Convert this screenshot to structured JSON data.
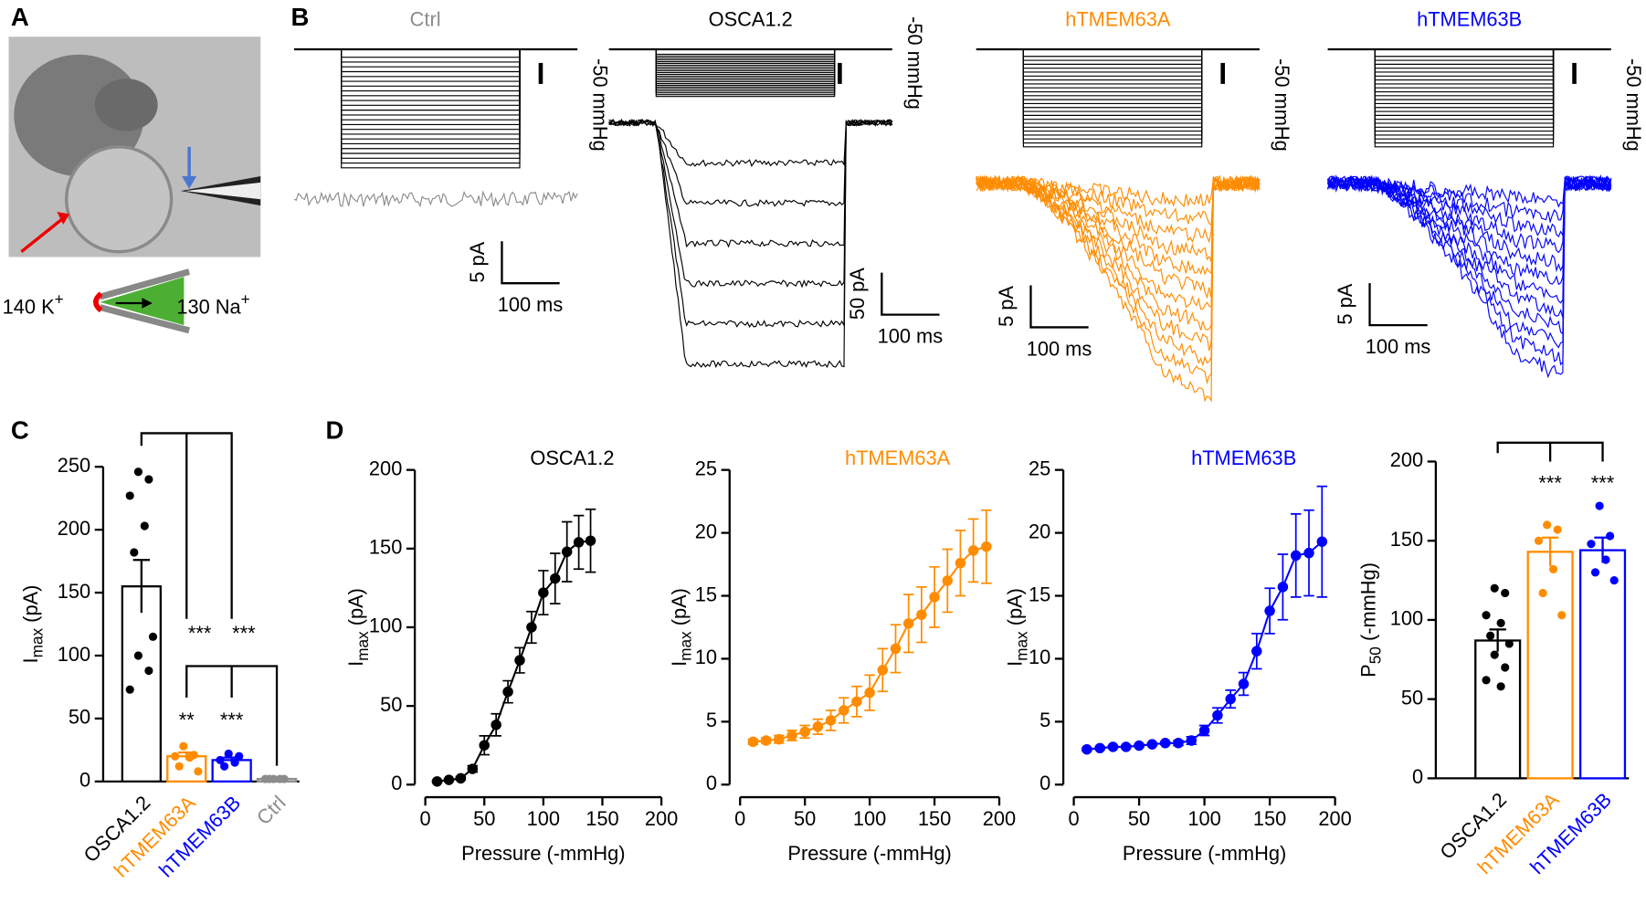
{
  "figure": {
    "panel_labels": [
      "A",
      "B",
      "C",
      "D"
    ],
    "ions": {
      "left": "140 K",
      "left_sup": "+",
      "right": "130 Na",
      "right_sup": "+"
    },
    "panel_b": [
      {
        "title": "Ctrl",
        "color": "#8c8c8c",
        "pressure_scale": "-50 mmHg",
        "current_scale": "5 pA",
        "time_scale": "100 ms"
      },
      {
        "title": "OSCA1.2",
        "color": "#000000",
        "pressure_scale": "-50 mmHg",
        "current_scale": "50 pA",
        "time_scale": "100 ms"
      },
      {
        "title": "hTMEM63A",
        "color": "#ff8c00",
        "pressure_scale": "-50 mmHg",
        "current_scale": "5 pA",
        "time_scale": "100 ms"
      },
      {
        "title": "hTMEM63B",
        "color": "#0000ff",
        "pressure_scale": "-50 mmHg",
        "current_scale": "5 pA",
        "time_scale": "100 ms"
      }
    ]
  },
  "chart_data": [
    {
      "type": "bar",
      "categories": [
        "OSCA1.2",
        "hTMEM63A",
        "hTMEM63B",
        "Ctrl"
      ],
      "colors": [
        "#000000",
        "#ff8c00",
        "#0000ff",
        "#8c8c8c"
      ],
      "values": [
        155,
        20,
        17,
        2
      ],
      "errors": [
        21,
        3,
        2,
        0.5
      ],
      "points": [
        [
          246,
          240,
          227,
          203,
          182,
          115,
          100,
          88,
          73
        ],
        [
          28,
          21,
          20,
          19,
          12,
          8
        ],
        [
          22,
          20,
          17,
          15,
          12
        ],
        [
          2,
          2,
          2,
          2,
          2
        ]
      ],
      "ylabel": [
        "I",
        "max",
        " (pA)"
      ],
      "ylim": [
        0,
        250
      ],
      "yticks": [
        0,
        50,
        100,
        150,
        200,
        250
      ],
      "annotations": [
        "***",
        "***",
        "**",
        "***"
      ]
    },
    {
      "type": "line",
      "title": "OSCA1.2",
      "color": "#000000",
      "x": [
        10,
        20,
        30,
        40,
        50,
        60,
        70,
        80,
        90,
        100,
        110,
        120,
        130,
        140
      ],
      "values": [
        2,
        3,
        4,
        10,
        25,
        38,
        59,
        79,
        100,
        122,
        131,
        148,
        154,
        155
      ],
      "errors": [
        0.5,
        0.5,
        1,
        2,
        6,
        7,
        7,
        8,
        10,
        14,
        16,
        19,
        17,
        20
      ],
      "xlabel": "Pressure (-mmHg)",
      "ylabel": [
        "I",
        "max",
        " (pA)"
      ],
      "xlim": [
        0,
        200
      ],
      "xticks": [
        0,
        50,
        100,
        150,
        200
      ],
      "ylim": [
        0,
        200
      ],
      "yticks": [
        0,
        50,
        100,
        150,
        200
      ]
    },
    {
      "type": "line",
      "title": "hTMEM63A",
      "color": "#ff8c00",
      "x": [
        10,
        20,
        30,
        40,
        50,
        60,
        70,
        80,
        90,
        100,
        110,
        120,
        130,
        140,
        150,
        160,
        170,
        180,
        190
      ],
      "values": [
        3.4,
        3.5,
        3.6,
        3.9,
        4.2,
        4.6,
        5.1,
        5.9,
        6.6,
        7.3,
        9.1,
        10.8,
        12.8,
        13.5,
        14.9,
        16.2,
        17.6,
        18.6,
        18.9
      ],
      "errors": [
        0.2,
        0.2,
        0.3,
        0.4,
        0.5,
        0.6,
        0.8,
        1,
        1.2,
        1.4,
        1.7,
        1.9,
        2.3,
        2.2,
        2.4,
        2.5,
        2.6,
        2.5,
        2.9
      ],
      "xlabel": "Pressure (-mmHg)",
      "ylabel": [
        "I",
        "max",
        " (pA)"
      ],
      "xlim": [
        0,
        200
      ],
      "xticks": [
        0,
        50,
        100,
        150,
        200
      ],
      "ylim": [
        0,
        25
      ],
      "yticks": [
        0,
        5,
        10,
        15,
        20,
        25
      ]
    },
    {
      "type": "line",
      "title": "hTMEM63B",
      "color": "#0000ff",
      "x": [
        10,
        20,
        30,
        40,
        50,
        60,
        70,
        80,
        90,
        100,
        110,
        120,
        130,
        140,
        150,
        160,
        170,
        180,
        190
      ],
      "values": [
        2.8,
        2.9,
        3.0,
        3.0,
        3.1,
        3.2,
        3.3,
        3.3,
        3.5,
        4.3,
        5.5,
        6.8,
        8.0,
        10.6,
        13.8,
        15.7,
        18.2,
        18.4,
        19.3
      ],
      "errors": [
        0.1,
        0.1,
        0.1,
        0.1,
        0.1,
        0.1,
        0.1,
        0.2,
        0.3,
        0.4,
        0.6,
        0.7,
        0.9,
        1.4,
        1.8,
        2.6,
        3.3,
        3.4,
        4.4
      ],
      "xlabel": "Pressure (-mmHg)",
      "ylabel": [
        "I",
        "max",
        " (pA)"
      ],
      "xlim": [
        0,
        200
      ],
      "xticks": [
        0,
        50,
        100,
        150,
        200
      ],
      "ylim": [
        0,
        25
      ],
      "yticks": [
        0,
        5,
        10,
        15,
        20,
        25
      ]
    },
    {
      "type": "bar",
      "categories": [
        "OSCA1.2",
        "hTMEM63A",
        "hTMEM63B"
      ],
      "colors": [
        "#000000",
        "#ff8c00",
        "#0000ff"
      ],
      "values": [
        87,
        143,
        144
      ],
      "errors": [
        7,
        9,
        8
      ],
      "points": [
        [
          120,
          117,
          103,
          98,
          90,
          85,
          78,
          70,
          62,
          58
        ],
        [
          160,
          157,
          150,
          132,
          117,
          103
        ],
        [
          172,
          153,
          148,
          138,
          130,
          125
        ]
      ],
      "ylabel": [
        "P",
        "50",
        " (-mmHg)"
      ],
      "ylim": [
        0,
        200
      ],
      "yticks": [
        0,
        50,
        100,
        150,
        200
      ],
      "annotations": [
        "***",
        "***"
      ]
    }
  ]
}
